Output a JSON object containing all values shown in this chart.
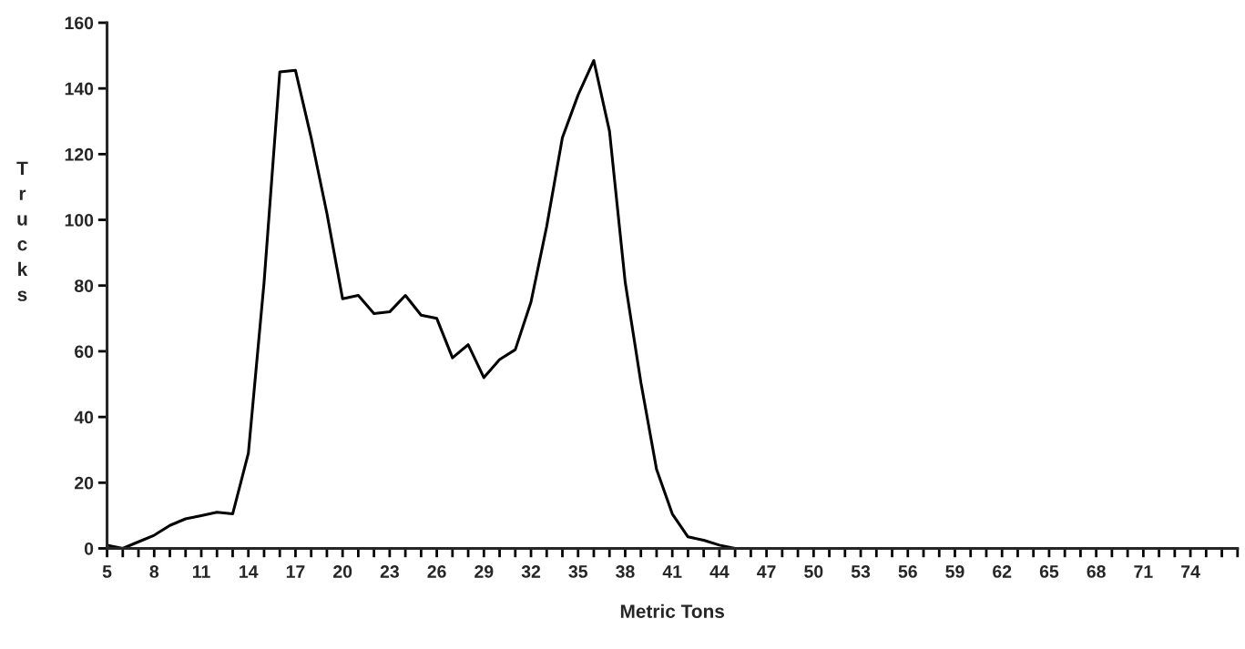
{
  "chart_data": {
    "type": "line",
    "xlabel": "Metric Tons",
    "ylabel": "Trucks",
    "x": [
      5,
      6,
      7,
      8,
      9,
      10,
      11,
      12,
      13,
      14,
      15,
      16,
      17,
      18,
      19,
      20,
      21,
      22,
      23,
      24,
      25,
      26,
      27,
      28,
      29,
      30,
      31,
      32,
      33,
      34,
      35,
      36,
      37,
      38,
      39,
      40,
      41,
      42,
      43,
      44,
      45,
      46,
      47,
      48,
      49,
      50,
      51,
      52,
      53,
      54,
      55,
      56,
      57,
      58,
      59,
      60,
      61,
      62,
      63,
      64,
      65,
      66,
      67,
      68,
      69,
      70,
      71,
      72,
      73,
      74,
      75,
      76,
      77
    ],
    "series": [
      {
        "color": "#000000",
        "values": [
          1,
          0,
          2,
          4,
          7,
          9,
          10,
          11,
          10.5,
          29,
          81,
          145,
          145.5,
          125,
          102,
          76,
          77,
          71.5,
          72,
          77,
          71,
          70,
          58,
          62,
          52,
          57.5,
          60.5,
          75,
          98,
          125,
          138,
          148.5,
          127,
          81,
          50.5,
          24,
          10.5,
          3.5,
          2.5,
          1,
          0,
          0,
          0,
          0,
          0,
          0,
          0,
          0,
          0,
          0,
          0,
          0,
          0,
          0,
          0,
          0,
          0,
          0,
          0,
          0,
          0,
          0,
          0,
          0,
          0,
          0,
          0,
          0,
          0,
          0,
          0,
          0,
          0
        ]
      }
    ],
    "xlim": [
      5,
      77
    ],
    "xticks": [
      5,
      {
        "value": 6,
        "label": null
      },
      {
        "value": 7,
        "label": null
      },
      8,
      {
        "value": 9,
        "label": null
      },
      {
        "value": 10,
        "label": null
      },
      11,
      {
        "value": 12,
        "label": null
      },
      {
        "value": 13,
        "label": null
      },
      14,
      {
        "value": 15,
        "label": null
      },
      {
        "value": 16,
        "label": null
      },
      17,
      {
        "value": 18,
        "label": null
      },
      {
        "value": 19,
        "label": null
      },
      20,
      {
        "value": 21,
        "label": null
      },
      {
        "value": 22,
        "label": null
      },
      23,
      {
        "value": 24,
        "label": null
      },
      {
        "value": 25,
        "label": null
      },
      26,
      {
        "value": 27,
        "label": null
      },
      {
        "value": 28,
        "label": null
      },
      29,
      {
        "value": 30,
        "label": null
      },
      {
        "value": 31,
        "label": null
      },
      32,
      {
        "value": 33,
        "label": null
      },
      {
        "value": 34,
        "label": null
      },
      35,
      {
        "value": 36,
        "label": null
      },
      {
        "value": 37,
        "label": null
      },
      38,
      {
        "value": 39,
        "label": null
      },
      {
        "value": 40,
        "label": null
      },
      41,
      {
        "value": 42,
        "label": null
      },
      {
        "value": 43,
        "label": null
      },
      44,
      {
        "value": 45,
        "label": null
      },
      {
        "value": 46,
        "label": null
      },
      47,
      {
        "value": 48,
        "label": null
      },
      {
        "value": 49,
        "label": null
      },
      50,
      {
        "value": 51,
        "label": null
      },
      {
        "value": 52,
        "label": null
      },
      53,
      {
        "value": 54,
        "label": null
      },
      {
        "value": 55,
        "label": null
      },
      56,
      {
        "value": 57,
        "label": null
      },
      {
        "value": 58,
        "label": null
      },
      59,
      {
        "value": 60,
        "label": null
      },
      {
        "value": 61,
        "label": null
      },
      62,
      {
        "value": 63,
        "label": null
      },
      {
        "value": 64,
        "label": null
      },
      65,
      {
        "value": 66,
        "label": null
      },
      {
        "value": 67,
        "label": null
      },
      68,
      {
        "value": 69,
        "label": null
      },
      {
        "value": 70,
        "label": null
      },
      71,
      {
        "value": 72,
        "label": null
      },
      {
        "value": 73,
        "label": null
      },
      74,
      {
        "value": 75,
        "label": null
      },
      {
        "value": 76,
        "label": null
      },
      {
        "value": 77,
        "label": null
      }
    ],
    "ylim": [
      0,
      160
    ],
    "yticks": [
      0,
      20,
      40,
      60,
      80,
      100,
      120,
      140,
      160
    ],
    "grid": false,
    "legend": false,
    "marker": "none",
    "line_style": "solid"
  }
}
